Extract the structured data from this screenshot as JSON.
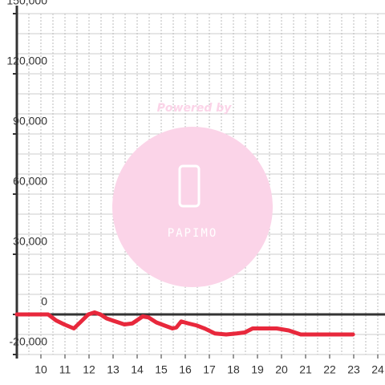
{
  "chart_data": {
    "type": "line",
    "watermark": {
      "line1": "Powered by",
      "line2": "PAPIMO"
    },
    "x": [
      9.0,
      10.3,
      10.63,
      10.97,
      11.37,
      11.63,
      11.97,
      12.23,
      12.47,
      12.73,
      12.97,
      13.47,
      13.8,
      14.23,
      14.47,
      14.8,
      15.13,
      15.47,
      15.63,
      15.83,
      16.13,
      16.47,
      16.8,
      17.23,
      17.7,
      18.13,
      18.47,
      18.8,
      19.8,
      20.3,
      20.8,
      21.47,
      22.97
    ],
    "series": [
      {
        "color": "#e8283c",
        "values": [
          0,
          0,
          -3000,
          -5000,
          -7000,
          -4000,
          0,
          1000,
          0,
          -2000,
          -3000,
          -5000,
          -4500,
          -1000,
          -1500,
          -4000,
          -5500,
          -7000,
          -6500,
          -3500,
          -4500,
          -5500,
          -7000,
          -9500,
          -10000,
          -9500,
          -9000,
          -7000,
          -7000,
          -8000,
          -10000,
          -10000,
          -10000
        ]
      }
    ],
    "xlim": [
      9,
      24.3
    ],
    "xticks": [
      10,
      11,
      12,
      13,
      14,
      15,
      16,
      17,
      18,
      19,
      20,
      21,
      22,
      23,
      24
    ],
    "xgrid": [
      9.5,
      10,
      10.5,
      11,
      11.5,
      12,
      12.5,
      13,
      13.5,
      14,
      14.5,
      15,
      15.5,
      16,
      16.5,
      17,
      17.5,
      18,
      18.5,
      19,
      19.5,
      20,
      20.5,
      21,
      21.5,
      22,
      22.5,
      23,
      23.5,
      24
    ],
    "ylim": [
      -20000,
      150000
    ],
    "yticks": [
      {
        "value": -20000,
        "label": "-20,000"
      },
      0,
      {
        "value": 30000,
        "label": "30,000"
      },
      {
        "value": 60000,
        "label": "60,000"
      },
      {
        "value": 90000,
        "label": "90,000"
      },
      {
        "value": 120000,
        "label": "120,000"
      },
      {
        "value": 150000,
        "label": "150,000"
      }
    ],
    "ygrid": [
      -10000,
      10000,
      20000,
      40000,
      50000,
      70000,
      80000,
      100000,
      110000,
      130000,
      140000
    ],
    "grid": true
  }
}
